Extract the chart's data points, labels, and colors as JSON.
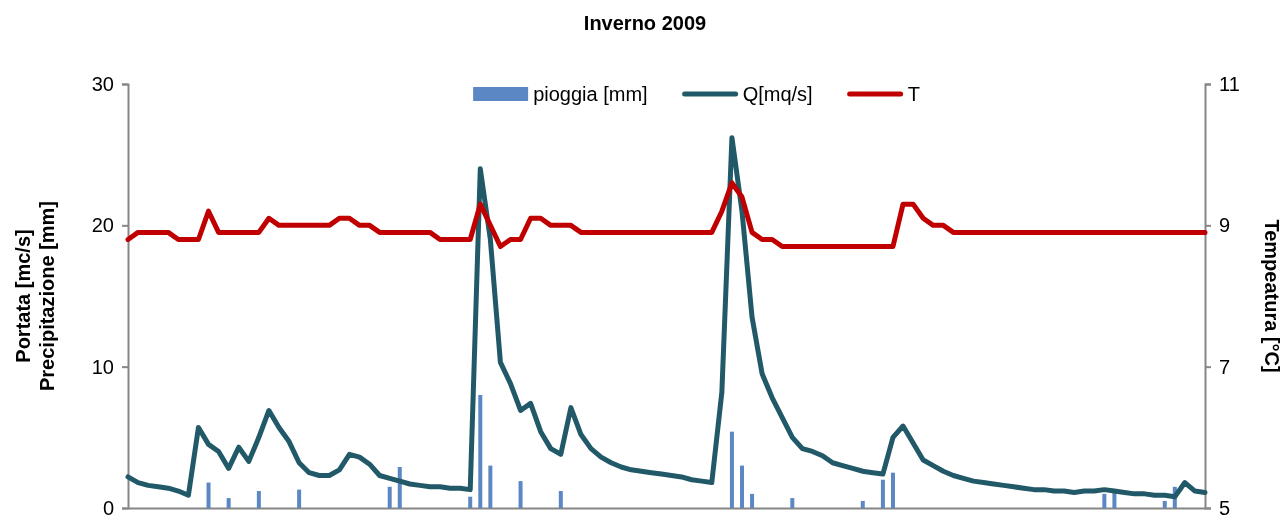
{
  "chart_data": {
    "type": "line",
    "title": "Inverno 2009",
    "ylabel": "Portata [mc/s]\nPrecipitazione [mm]",
    "y2label": "Tempeatura [°C]",
    "categories": [
      null,
      null,
      null,
      null,
      null,
      null,
      null,
      null,
      null,
      null,
      null,
      null,
      null,
      null,
      null,
      null,
      null,
      null,
      null,
      null,
      null,
      null,
      null,
      null,
      null,
      null,
      null,
      null,
      null,
      null,
      null,
      null,
      null,
      null,
      null,
      null,
      null,
      null,
      null,
      null,
      null,
      null,
      null,
      null,
      null,
      null,
      null,
      null,
      null,
      null,
      null,
      null,
      null,
      null,
      null,
      null,
      null,
      null,
      null,
      null,
      null,
      null,
      null,
      null,
      null,
      null,
      null,
      null,
      null,
      null,
      null,
      null,
      null,
      null,
      null,
      null,
      null,
      null,
      null,
      null,
      null,
      null,
      null,
      null,
      null,
      null,
      null,
      null,
      null,
      null,
      null,
      null,
      null,
      null,
      null,
      null,
      null,
      null,
      null,
      null,
      null,
      null,
      null,
      null,
      null,
      null,
      null,
      null
    ],
    "series": [
      {
        "name": "pioggia [mm]",
        "type": "bar",
        "color": "#5b87c5",
        "values": [
          0,
          0,
          0,
          0,
          0,
          0,
          0,
          0,
          1.8,
          0,
          0.7,
          0,
          0,
          1.2,
          0,
          0,
          0,
          1.3,
          0,
          0,
          0,
          0,
          0,
          0,
          0,
          0,
          1.5,
          2.9,
          0,
          0,
          0,
          0,
          0,
          0,
          0.8,
          8.0,
          3.0,
          0,
          0,
          1.9,
          0,
          0,
          0,
          1.2,
          0,
          0,
          0,
          0,
          0,
          0,
          0,
          0,
          0,
          0,
          0,
          0,
          0,
          0,
          0,
          0,
          5.4,
          3.0,
          1.0,
          0,
          0,
          0,
          0.7,
          0,
          0,
          0,
          0,
          0,
          0,
          0.5,
          0,
          2.0,
          2.5,
          0,
          0,
          0,
          0,
          0,
          0,
          0,
          0,
          0,
          0,
          0,
          0,
          0,
          0,
          0,
          0,
          0,
          0,
          0,
          0,
          1.0,
          1.2,
          0,
          0,
          0,
          0,
          0.5,
          1.5,
          0,
          0,
          0
        ]
      },
      {
        "name": "Q[mq/s]",
        "color": "#215968",
        "values": [
          2.2,
          1.8,
          1.6,
          1.5,
          1.4,
          1.2,
          0.9,
          5.7,
          4.5,
          4.0,
          2.8,
          4.3,
          3.3,
          5.0,
          6.9,
          5.7,
          4.7,
          3.2,
          2.5,
          2.3,
          2.3,
          2.7,
          3.8,
          3.6,
          3.1,
          2.3,
          2.1,
          1.9,
          1.7,
          1.6,
          1.5,
          1.5,
          1.4,
          1.4,
          1.3,
          24,
          19,
          10.3,
          8.8,
          6.9,
          7.4,
          5.4,
          4.2,
          3.8,
          7.1,
          5.2,
          4.2,
          3.6,
          3.2,
          2.9,
          2.7,
          2.6,
          2.5,
          2.4,
          2.3,
          2.2,
          2.0,
          1.9,
          1.8,
          8.2,
          26.2,
          21,
          13.5,
          9.5,
          7.8,
          6.4,
          5.0,
          4.2,
          4.0,
          3.7,
          3.2,
          3.0,
          2.8,
          2.6,
          2.5,
          2.4,
          5.0,
          5.8,
          4.6,
          3.4,
          3.0,
          2.6,
          2.3,
          2.1,
          1.9,
          1.8,
          1.7,
          1.6,
          1.5,
          1.4,
          1.3,
          1.3,
          1.2,
          1.2,
          1.1,
          1.2,
          1.2,
          1.3,
          1.2,
          1.1,
          1.0,
          1.0,
          0.9,
          0.9,
          0.8,
          1.8,
          1.2,
          1.1
        ]
      },
      {
        "name": "T",
        "axis": "y2",
        "color": "#c00000",
        "values": [
          8.8,
          8.9,
          8.9,
          8.9,
          8.9,
          8.8,
          8.8,
          8.8,
          9.2,
          8.9,
          8.9,
          8.9,
          8.9,
          8.9,
          9.1,
          9.0,
          9.0,
          9.0,
          9.0,
          9.0,
          9.0,
          9.1,
          9.1,
          9.0,
          9.0,
          8.9,
          8.9,
          8.9,
          8.9,
          8.9,
          8.9,
          8.8,
          8.8,
          8.8,
          8.8,
          9.3,
          9.0,
          8.7,
          8.8,
          8.8,
          9.1,
          9.1,
          9.0,
          9.0,
          9.0,
          8.9,
          8.9,
          8.9,
          8.9,
          8.9,
          8.9,
          8.9,
          8.9,
          8.9,
          8.9,
          8.9,
          8.9,
          8.9,
          8.9,
          9.2,
          9.6,
          9.4,
          8.9,
          8.8,
          8.8,
          8.7,
          8.7,
          8.7,
          8.7,
          8.7,
          8.7,
          8.7,
          8.7,
          8.7,
          8.7,
          8.7,
          8.7,
          9.3,
          9.3,
          9.1,
          9.0,
          9.0,
          8.9,
          8.9,
          8.9,
          8.9,
          8.9,
          8.9,
          8.9,
          8.9,
          8.9,
          8.9,
          8.9,
          8.9,
          8.9,
          8.9,
          8.9,
          8.9,
          8.9,
          8.9,
          8.9,
          8.9,
          8.9,
          8.9,
          8.9,
          8.9,
          8.9,
          8.9
        ]
      }
    ],
    "ylim": [
      0,
      30
    ],
    "yticks": [
      0,
      10,
      20,
      30
    ],
    "y2lim": [
      5,
      11
    ],
    "y2ticks": [
      5,
      7,
      9,
      11
    ],
    "legend": "top",
    "grid": false,
    "marker": "none",
    "line_style": "solid"
  }
}
